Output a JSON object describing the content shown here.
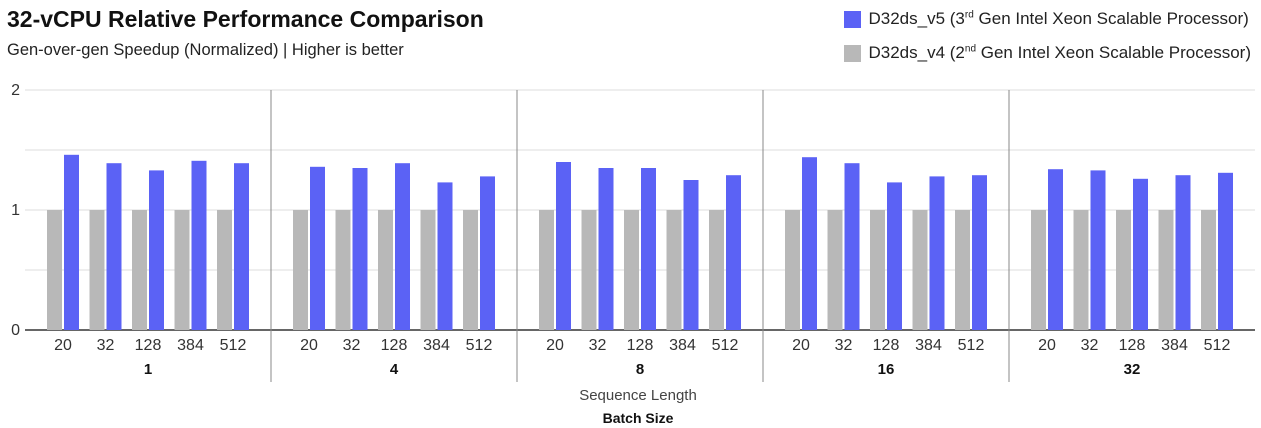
{
  "title": "32-vCPU Relative Performance Comparison",
  "subtitle": "Gen-over-gen Speedup (Normalized)  |  Higher is better",
  "legend": [
    {
      "name_main": "D32ds_v5 (3",
      "sup": "rd",
      "name_rest": " Gen Intel Xeon Scalable Processor)",
      "color": "#5b62f5"
    },
    {
      "name_main": "D32ds_v4 (2",
      "sup": "nd",
      "name_rest": " Gen Intel Xeon Scalable Processor)",
      "color": "#b8b8b8"
    }
  ],
  "chart_data": {
    "type": "bar",
    "title": "32-vCPU Relative Performance Comparison",
    "subtitle": "Gen-over-gen Speedup (Normalized)  |  Higher is better",
    "xlabel_inner": "Sequence Length",
    "xlabel_outer": "Batch Size",
    "ylim": [
      0,
      2
    ],
    "yticks": [
      0,
      1,
      2
    ],
    "grid": true,
    "legend_position": "top-right",
    "groups": [
      "1",
      "4",
      "8",
      "16",
      "32"
    ],
    "categories": [
      "20",
      "32",
      "128",
      "384",
      "512"
    ],
    "series": [
      {
        "name": "D32ds_v4 (2nd Gen Intel Xeon Scalable Processor)",
        "color": "#b8b8b8",
        "values": [
          [
            1,
            1,
            1,
            1,
            1
          ],
          [
            1,
            1,
            1,
            1,
            1
          ],
          [
            1,
            1,
            1,
            1,
            1
          ],
          [
            1,
            1,
            1,
            1,
            1
          ],
          [
            1,
            1,
            1,
            1,
            1
          ]
        ]
      },
      {
        "name": "D32ds_v5 (3rd Gen Intel Xeon Scalable Processor)",
        "color": "#5b62f5",
        "values": [
          [
            1.46,
            1.39,
            1.33,
            1.41,
            1.39
          ],
          [
            1.36,
            1.35,
            1.39,
            1.23,
            1.28
          ],
          [
            1.4,
            1.35,
            1.35,
            1.25,
            1.29
          ],
          [
            1.44,
            1.39,
            1.23,
            1.28,
            1.29
          ],
          [
            1.34,
            1.33,
            1.26,
            1.29,
            1.31
          ]
        ]
      }
    ]
  }
}
